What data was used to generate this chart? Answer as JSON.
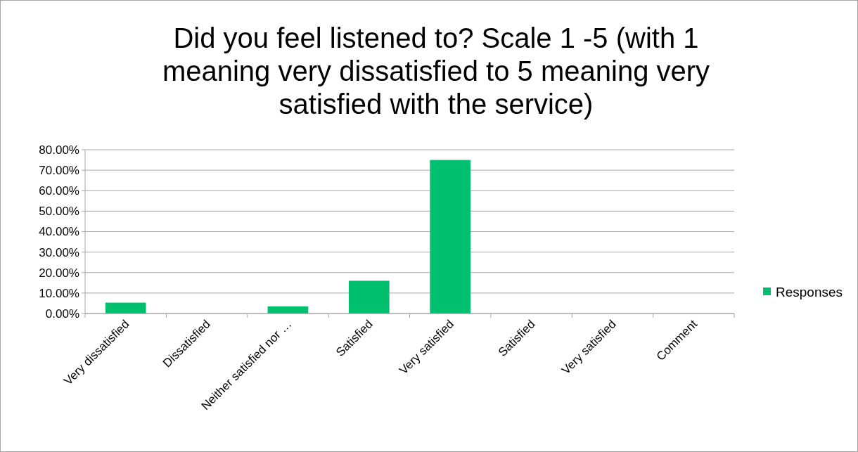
{
  "chart_data": {
    "type": "bar",
    "title": "Did you feel listened to? Scale 1 -5 (with 1 meaning very dissatisfied to 5 meaning very satisfied with the service)",
    "categories": [
      "Very dissatisfied",
      "Dissatisfied",
      "Neither satisfied nor …",
      "Satisfied",
      "Very satisfied",
      "Satisfied",
      "Very satisfied",
      "Comment"
    ],
    "series": [
      {
        "name": "Responses",
        "color": "#00bf6f",
        "values": [
          5.3,
          0,
          3.5,
          16,
          75,
          0,
          0,
          0
        ]
      }
    ],
    "ylim": [
      0,
      80
    ],
    "yticks": [
      {
        "value": 0,
        "label": "0.00%"
      },
      {
        "value": 10,
        "label": "10.00%"
      },
      {
        "value": 20,
        "label": "20.00%"
      },
      {
        "value": 30,
        "label": "30.00%"
      },
      {
        "value": 40,
        "label": "40.00%"
      },
      {
        "value": 50,
        "label": "50.00%"
      },
      {
        "value": 60,
        "label": "60.00%"
      },
      {
        "value": 70,
        "label": "70.00%"
      },
      {
        "value": 80,
        "label": "80.00%"
      }
    ],
    "grid": "y",
    "legend": "right"
  }
}
